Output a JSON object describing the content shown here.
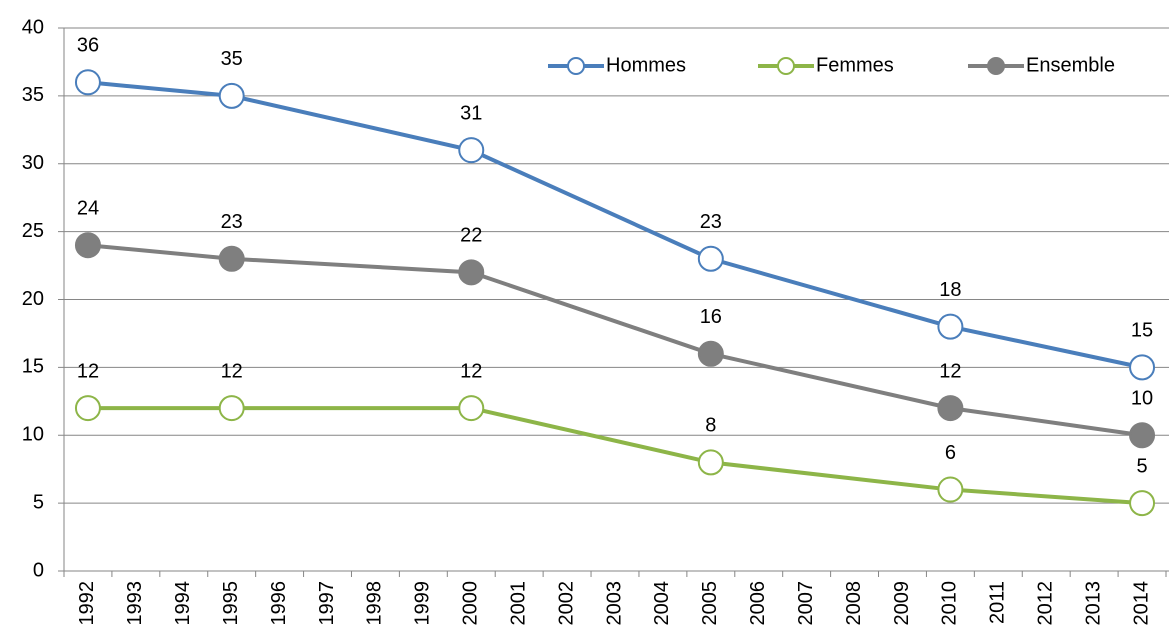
{
  "chart_data": {
    "type": "line",
    "x": [
      1992,
      1995,
      2000,
      2005,
      2010,
      2014
    ],
    "series": [
      {
        "name": "Hommes",
        "color": "#4a7ebb",
        "marker": "open",
        "values": [
          36,
          35,
          31,
          23,
          18,
          15
        ]
      },
      {
        "name": "Femmes",
        "color": "#8db548",
        "marker": "open",
        "values": [
          12,
          12,
          12,
          8,
          6,
          5
        ]
      },
      {
        "name": "Ensemble",
        "color": "#7f7f7f",
        "marker": "filled",
        "values": [
          24,
          23,
          22,
          16,
          12,
          10
        ]
      }
    ],
    "xlim": [
      1991.5,
      2014.5
    ],
    "xticks": [
      1992,
      1993,
      1994,
      1995,
      1996,
      1997,
      1998,
      1999,
      2000,
      2001,
      2002,
      2003,
      2004,
      2005,
      2006,
      2007,
      2008,
      2009,
      2010,
      2011,
      2012,
      2013,
      2014
    ],
    "ylim": [
      0,
      40
    ],
    "yticks": [
      0,
      5,
      10,
      15,
      20,
      25,
      30,
      35,
      40
    ],
    "grid": true,
    "legend": "top-right"
  }
}
